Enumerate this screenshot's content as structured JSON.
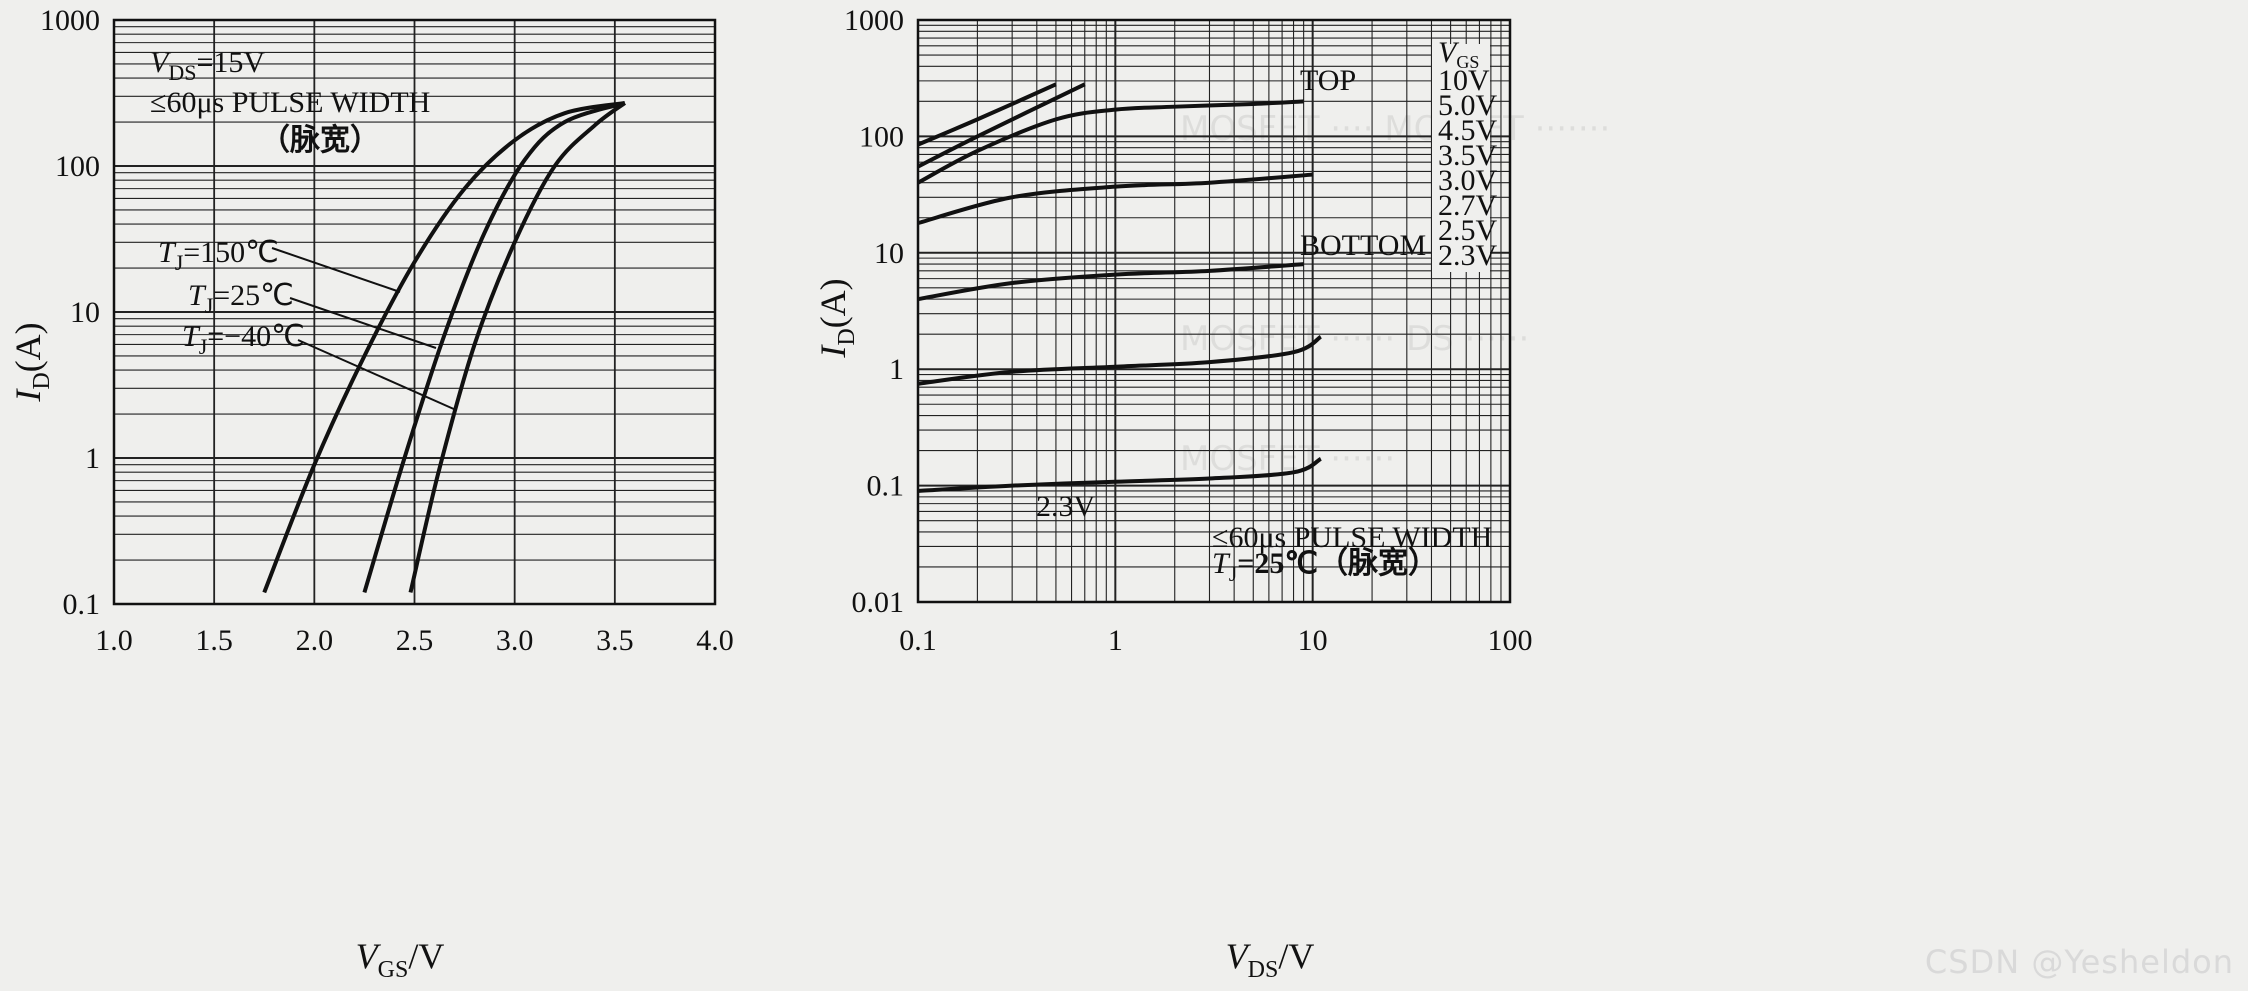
{
  "charts": [
    {
      "title": "",
      "x_axis": {
        "label_main": "V",
        "label_sub": "GS",
        "label_tail": "/V",
        "ticks": [
          "1.0",
          "1.5",
          "2.0",
          "2.5",
          "3.0",
          "3.5",
          "4.0"
        ]
      },
      "y_axis": {
        "label_main": "I",
        "label_sub": "D",
        "label_tail": "(A)",
        "ticks": [
          "0.1",
          "1",
          "10",
          "100",
          "1000"
        ]
      },
      "notes": {
        "vds_main": "V",
        "vds_sub": "DS",
        "vds_tail": "=15V",
        "pulse": "≤60μs PULSE WIDTH",
        "pulse_cn": "（脉宽）",
        "t150": "=150℃",
        "t25": "=25℃",
        "tm40": "=−40℃",
        "tj_main": "T",
        "tj_sub": "J"
      }
    },
    {
      "title": "",
      "x_axis": {
        "label_main": "V",
        "label_sub": "DS",
        "label_tail": "/V",
        "ticks": [
          "0.1",
          "1",
          "10",
          "100"
        ]
      },
      "y_axis": {
        "label_main": "I",
        "label_sub": "D",
        "label_tail": "(A)",
        "ticks": [
          "0.01",
          "0.1",
          "1",
          "10",
          "100",
          "1000"
        ]
      },
      "notes": {
        "vgs_main": "V",
        "vgs_sub": "GS",
        "legend": [
          "10V",
          "5.0V",
          "4.5V",
          "3.5V",
          "3.0V",
          "2.7V",
          "2.5V",
          "2.3V"
        ],
        "top": "TOP",
        "bottom": "BOTTOM",
        "curve_23": "2.3V",
        "pulse": "≤60μs PULSE WIDTH",
        "tj_main": "T",
        "tj_sub": "J",
        "tj_tail": "=25℃（脉宽）"
      }
    }
  ],
  "watermark": "CSDN @Yesheldon",
  "chart_data": [
    {
      "type": "line",
      "title": "",
      "xlabel": "VGS/V",
      "ylabel": "ID(A)",
      "xlim": [
        1.0,
        4.0
      ],
      "ylim": [
        0.1,
        1000
      ],
      "yscale": "log",
      "series": [
        {
          "name": "TJ=150℃",
          "x": [
            1.75,
            2.0,
            2.25,
            2.5,
            2.75,
            3.0,
            3.25,
            3.55
          ],
          "values": [
            0.12,
            0.9,
            5.0,
            22,
            70,
            150,
            230,
            270
          ]
        },
        {
          "name": "TJ=25℃",
          "x": [
            2.25,
            2.45,
            2.65,
            2.85,
            3.05,
            3.25,
            3.55
          ],
          "values": [
            0.12,
            1.0,
            7.0,
            35,
            110,
            200,
            270
          ]
        },
        {
          "name": "TJ=−40℃",
          "x": [
            2.48,
            2.62,
            2.8,
            3.0,
            3.2,
            3.4,
            3.55
          ],
          "values": [
            0.12,
            0.8,
            6.0,
            30,
            100,
            190,
            270
          ]
        }
      ]
    },
    {
      "type": "line",
      "title": "",
      "xlabel": "VDS/V",
      "ylabel": "ID(A)",
      "xlim": [
        0.1,
        100
      ],
      "ylim": [
        0.01,
        1000
      ],
      "xscale": "log",
      "yscale": "log",
      "series": [
        {
          "name": "10V",
          "x": [
            0.1,
            0.2,
            0.5
          ],
          "values": [
            85,
            140,
            280
          ]
        },
        {
          "name": "5.0V",
          "x": [
            0.1,
            0.2,
            0.7
          ],
          "values": [
            55,
            100,
            280
          ]
        },
        {
          "name": "4.5V",
          "x": [
            0.1,
            0.2,
            0.5,
            1,
            2,
            5,
            9
          ],
          "values": [
            40,
            75,
            140,
            170,
            180,
            190,
            200
          ]
        },
        {
          "name": "3.5V",
          "x": [
            0.1,
            0.3,
            1,
            3,
            10
          ],
          "values": [
            18,
            30,
            37,
            40,
            47
          ]
        },
        {
          "name": "3.0V",
          "x": [
            0.1,
            0.3,
            1,
            3,
            9
          ],
          "values": [
            4,
            5.5,
            6.5,
            7,
            8
          ]
        },
        {
          "name": "2.7V",
          "x": [
            0.1,
            0.3,
            1,
            3,
            8,
            11
          ],
          "values": [
            0.75,
            0.95,
            1.05,
            1.15,
            1.4,
            1.9
          ]
        },
        {
          "name": "2.3V",
          "x": [
            0.1,
            0.3,
            1,
            3,
            8,
            11
          ],
          "values": [
            0.09,
            0.1,
            0.108,
            0.115,
            0.13,
            0.17
          ]
        }
      ]
    }
  ]
}
